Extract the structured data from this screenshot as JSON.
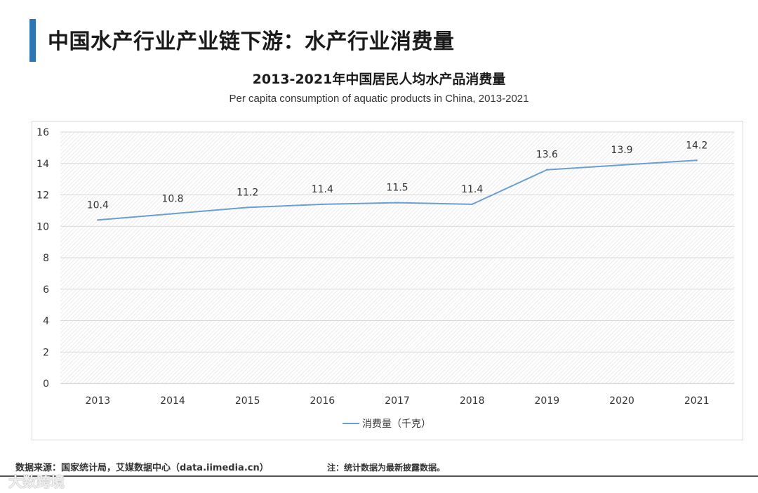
{
  "page": {
    "title": "中国水产行业产业链下游：水产行业消费量",
    "accent_color": "#2e75b6"
  },
  "footer": {
    "source": "数据来源：国家统计局，艾媒数据中心（data.iimedia.cn）",
    "note": "注：统计数据为最新披露数据。",
    "watermark": "大数跨境"
  },
  "chart_data": {
    "type": "line",
    "title": "2013-2021年中国居民人均水产品消费量",
    "subtitle": "Per capita consumption of aquatic products in China, 2013-2021",
    "categories": [
      "2013",
      "2014",
      "2015",
      "2016",
      "2017",
      "2018",
      "2019",
      "2020",
      "2021"
    ],
    "series": [
      {
        "name": "消费量（千克）",
        "values": [
          10.4,
          10.8,
          11.2,
          11.4,
          11.5,
          11.4,
          13.6,
          13.9,
          14.2
        ],
        "color": "#6a9fcf"
      }
    ],
    "data_labels": [
      "10.4",
      "10.8",
      "11.2",
      "11.4",
      "11.5",
      "11.4",
      "13.6",
      "13.9",
      "14.2"
    ],
    "ylim": [
      0,
      16
    ],
    "yticks": [
      0,
      2,
      4,
      6,
      8,
      10,
      12,
      14,
      16
    ],
    "xlabel": "",
    "ylabel": "",
    "grid": true,
    "legend_position": "bottom"
  }
}
